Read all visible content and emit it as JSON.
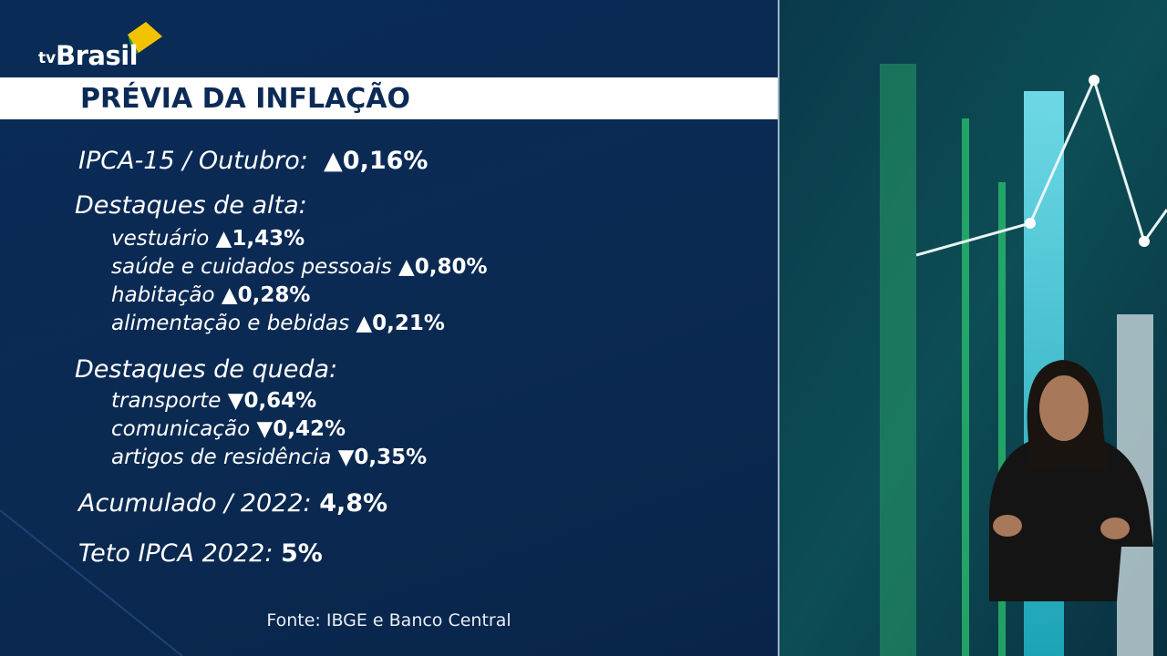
{
  "logo": {
    "prefix": "tv",
    "name": "Brasil"
  },
  "header": {
    "title": "PRÉVIA DA INFLAÇÃO"
  },
  "summary": {
    "label": "IPCA-15 / Outubro:",
    "value": "▲0,16%"
  },
  "highs": {
    "heading": "Destaques de alta:",
    "items": [
      {
        "label": "vestuário",
        "value": "▲1,43%"
      },
      {
        "label": "saúde e cuidados pessoais",
        "value": "▲0,80%"
      },
      {
        "label": "habitação",
        "value": "▲0,28%"
      },
      {
        "label": "alimentação e bebidas",
        "value": "▲0,21%"
      }
    ]
  },
  "lows": {
    "heading": "Destaques de queda:",
    "items": [
      {
        "label": "transporte",
        "value": "▼0,64%"
      },
      {
        "label": "comunicação",
        "value": "▼0,42%"
      },
      {
        "label": "artigos de residência",
        "value": "▼0,35%"
      }
    ]
  },
  "accumulated": {
    "label": "Acumulado / 2022:",
    "value": "4,8%"
  },
  "ceiling": {
    "label": "Teto IPCA 2022:",
    "value": "5%"
  },
  "source": "Fonte: IBGE e Banco Central"
}
